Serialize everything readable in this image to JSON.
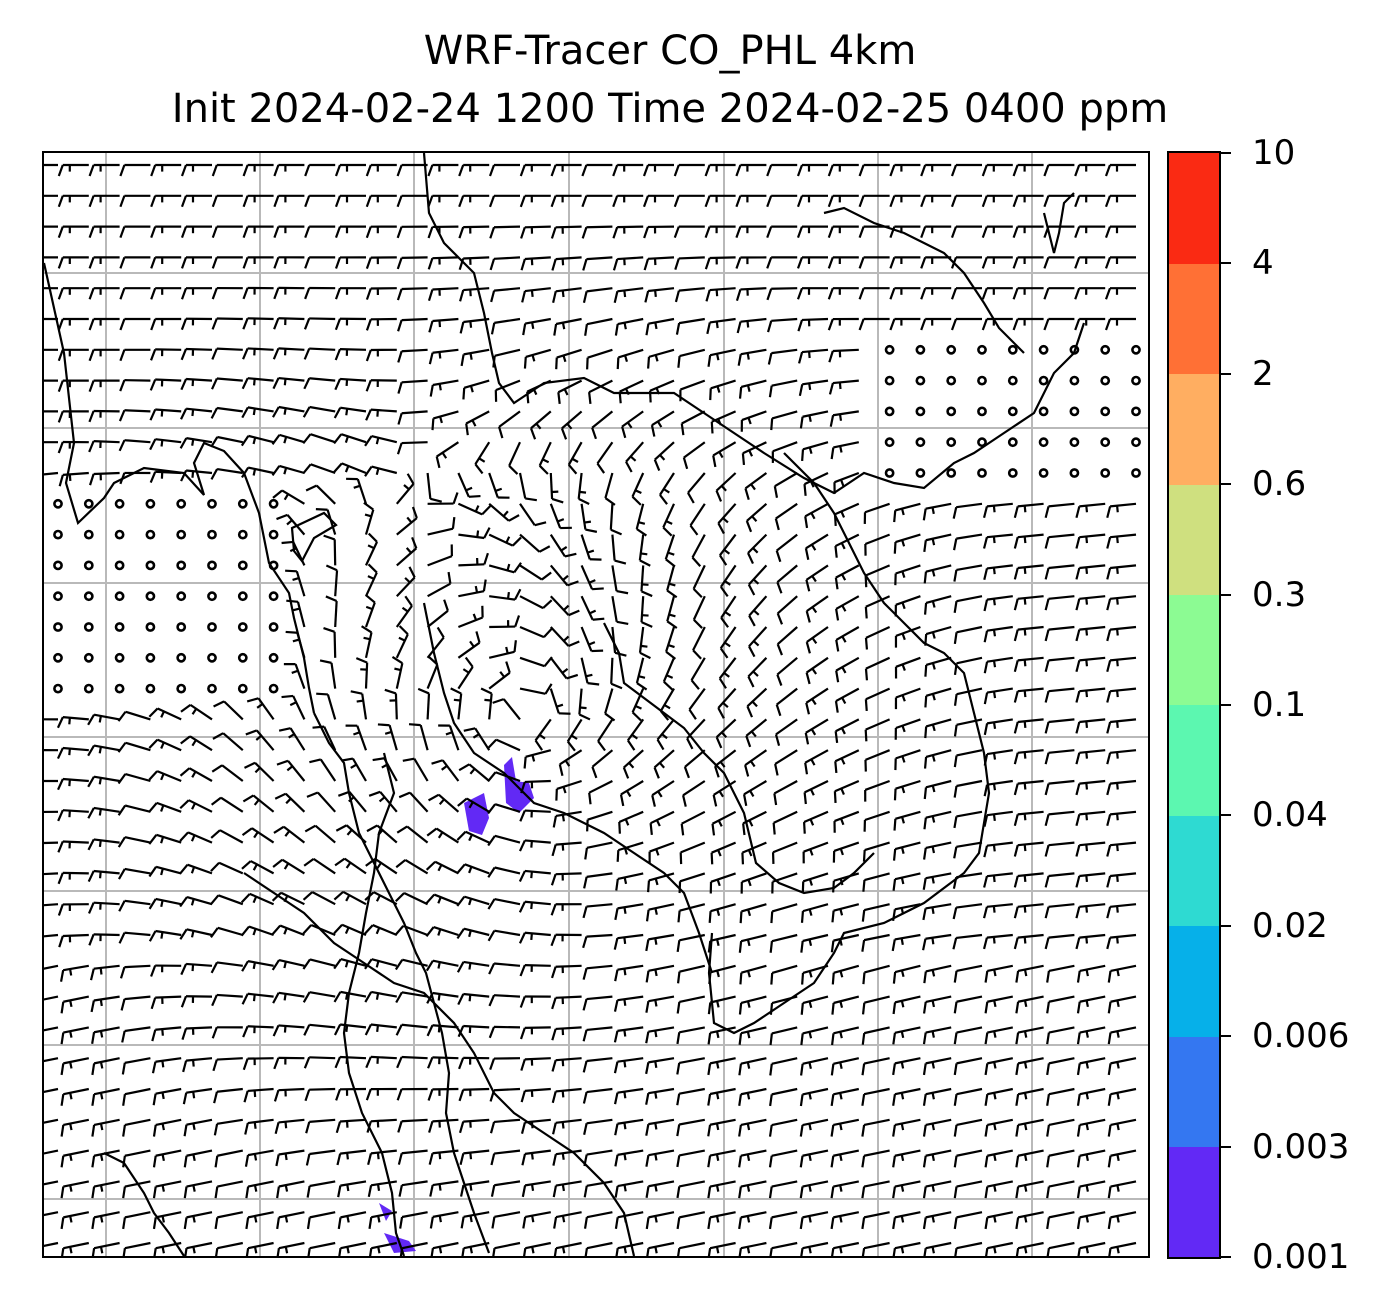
{
  "title": {
    "line1": "WRF-Tracer CO_PHL 4km",
    "line2": "Init 2024-02-24 1200 Time 2024-02-25 0400 ppm"
  },
  "map": {
    "projection_grid": "lat/lon gridlines",
    "features": [
      "coastlines",
      "state-borders",
      "wind-barbs",
      "calm-wind-circles",
      "tracer-concentration-fill"
    ],
    "tracer_color": "#6229f5",
    "barb_color": "#000000",
    "grid_color": "#b9b9b9"
  },
  "colorbar": {
    "levels": [
      "0.001",
      "0.003",
      "0.006",
      "0.02",
      "0.04",
      "0.1",
      "0.3",
      "0.6",
      "2",
      "4",
      "10"
    ],
    "colors": [
      "#6229f5",
      "#3477f1",
      "#06b0e9",
      "#2edad2",
      "#5cf7b0",
      "#8cfb93",
      "#cfe07f",
      "#ffae61",
      "#ff7035",
      "#fa2a13"
    ]
  }
}
